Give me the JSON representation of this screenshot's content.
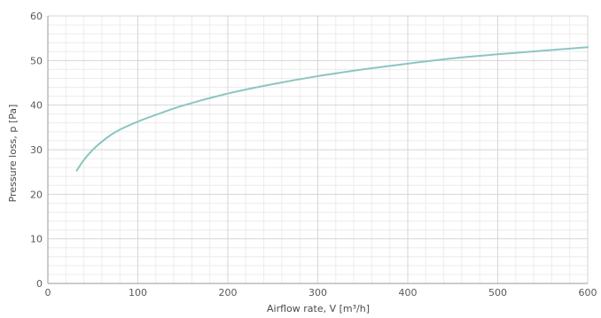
{
  "chart_data": {
    "type": "line",
    "title": "",
    "xlabel": "Airflow rate, V [m³/h]",
    "ylabel": "Pressure loss, p [Pa]",
    "xlim": [
      0,
      600
    ],
    "ylim": [
      0,
      60
    ],
    "x_ticks": [
      "0",
      "100",
      "200",
      "300",
      "400",
      "500",
      "600"
    ],
    "y_ticks": [
      "0",
      "10",
      "20",
      "30",
      "40",
      "50",
      "60"
    ],
    "grid": true,
    "minor_grid": true,
    "series": [
      {
        "color": "#8cc6c2",
        "x": [
          32,
          40,
          50,
          60,
          70,
          80,
          100,
          120,
          150,
          200,
          250,
          300,
          350,
          400,
          450,
          500,
          550,
          600
        ],
        "y": [
          25.3,
          27.7,
          30.0,
          31.8,
          33.3,
          34.5,
          36.3,
          37.8,
          39.9,
          42.6,
          44.7,
          46.5,
          48.0,
          49.3,
          50.5,
          51.4,
          52.2,
          53.0
        ]
      }
    ]
  }
}
